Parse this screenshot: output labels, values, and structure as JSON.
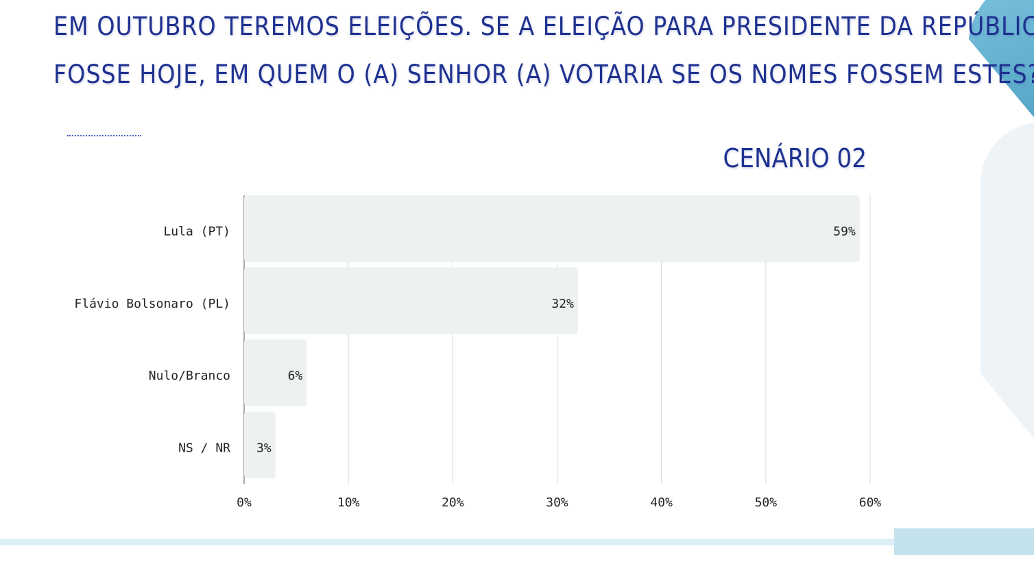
{
  "title_lines": [
    "EM OUTUBRO TEREMOS ELEIÇÕES. SE A ELEIÇÃO PARA PRESIDENTE DA REPÚBLICA",
    "FOSSE HOJE, EM QUEM O (A) SENHOR (A) VOTARIA SE OS NOMES FOSSEM ESTES?"
  ],
  "scenario_label": "CENÁRIO 02",
  "colors": {
    "title": "#1f3190",
    "bar": "#edf1f2",
    "grid": "#d9d9d9",
    "accent_light": "#ddeff6",
    "accent_dark": "#4a9fc2"
  },
  "chart_data": {
    "type": "bar",
    "orientation": "horizontal",
    "title": "CENÁRIO 02",
    "categories": [
      "Lula (PT)",
      "Flávio Bolsonaro (PL)",
      "Nulo/Branco",
      "NS / NR"
    ],
    "values": [
      59,
      32,
      6,
      3
    ],
    "data_labels": [
      "59%",
      "32%",
      "6%",
      "3%"
    ],
    "xlim": [
      0,
      60
    ],
    "xticks": [
      0,
      10,
      20,
      30,
      40,
      50,
      60
    ],
    "xtick_labels": [
      "0%",
      "10%",
      "20%",
      "30%",
      "40%",
      "50%",
      "60%"
    ],
    "xlabel": "",
    "ylabel": "",
    "grid": true
  }
}
